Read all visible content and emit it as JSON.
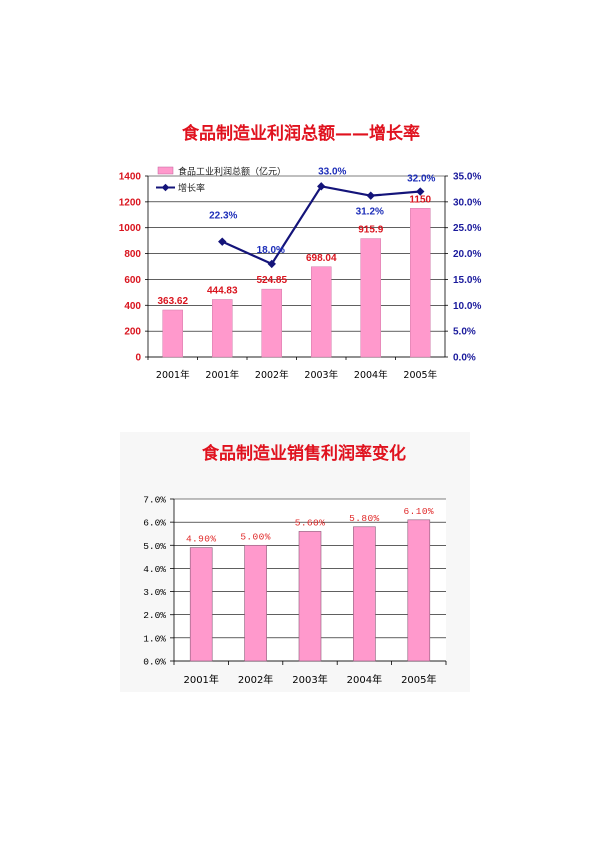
{
  "chart_data": [
    {
      "type": "bar",
      "title": "食品制造业利润总额——增长率",
      "title_color": "#E0121E",
      "categories": [
        "2001年",
        "2001年",
        "2002年",
        "2003年",
        "2004年",
        "2005年"
      ],
      "ylim": [
        0,
        1400
      ],
      "y_ticks": [
        0,
        200,
        400,
        600,
        800,
        1000,
        1200,
        1400
      ],
      "y_tick_labels": [
        "0",
        "200",
        "400",
        "600",
        "800",
        "1000",
        "1200",
        "1400"
      ],
      "y_tick_color": "#D9141E",
      "y2lim": [
        0,
        35
      ],
      "y2_ticks": [
        0,
        5,
        10,
        15,
        20,
        25,
        30,
        35
      ],
      "y2_tick_labels": [
        "0.0%",
        "5.0%",
        "10.0%",
        "15.0%",
        "20.0%",
        "25.0%",
        "30.0%",
        "35.0%"
      ],
      "y2_tick_color": "#1A1A9C",
      "grid": true,
      "legend": "top-left",
      "series": [
        {
          "name": "食品工业利润总额（亿元）",
          "type": "bar",
          "axis": "left",
          "color": "#FF99CC",
          "values": [
            363.62,
            444.83,
            524.85,
            698.04,
            915.9,
            1150
          ],
          "labels": [
            "363.62",
            "444.83",
            "524.85",
            "698.04",
            "915.9",
            "1150"
          ],
          "label_color": "#D9141E"
        },
        {
          "name": "增长率",
          "type": "line",
          "axis": "right",
          "marker": "diamond",
          "color": "#14147A",
          "values": [
            null,
            22.3,
            18.0,
            33.0,
            31.2,
            32.0
          ],
          "labels": [
            null,
            "22.3%",
            "18.0%",
            "33.0%",
            "31.2%",
            "32.0%"
          ],
          "label_color": "#1C2DB8"
        }
      ]
    },
    {
      "type": "bar",
      "title": "食品制造业销售利润率变化",
      "title_color": "#E0121E",
      "categories": [
        "2001年",
        "2002年",
        "2003年",
        "2004年",
        "2005年"
      ],
      "values": [
        4.9,
        5.0,
        5.6,
        5.8,
        6.1
      ],
      "value_labels": [
        "4.90%",
        "5.00%",
        "5.60%",
        "5.80%",
        "6.10%"
      ],
      "ylim": [
        0,
        7
      ],
      "y_ticks": [
        0,
        1,
        2,
        3,
        4,
        5,
        6,
        7
      ],
      "y_tick_labels": [
        "0.0%",
        "1.0%",
        "2.0%",
        "3.0%",
        "4.0%",
        "5.0%",
        "6.0%",
        "7.0%"
      ],
      "bar_color": "#FF99CC",
      "label_color": "#E02828",
      "grid": true
    }
  ]
}
